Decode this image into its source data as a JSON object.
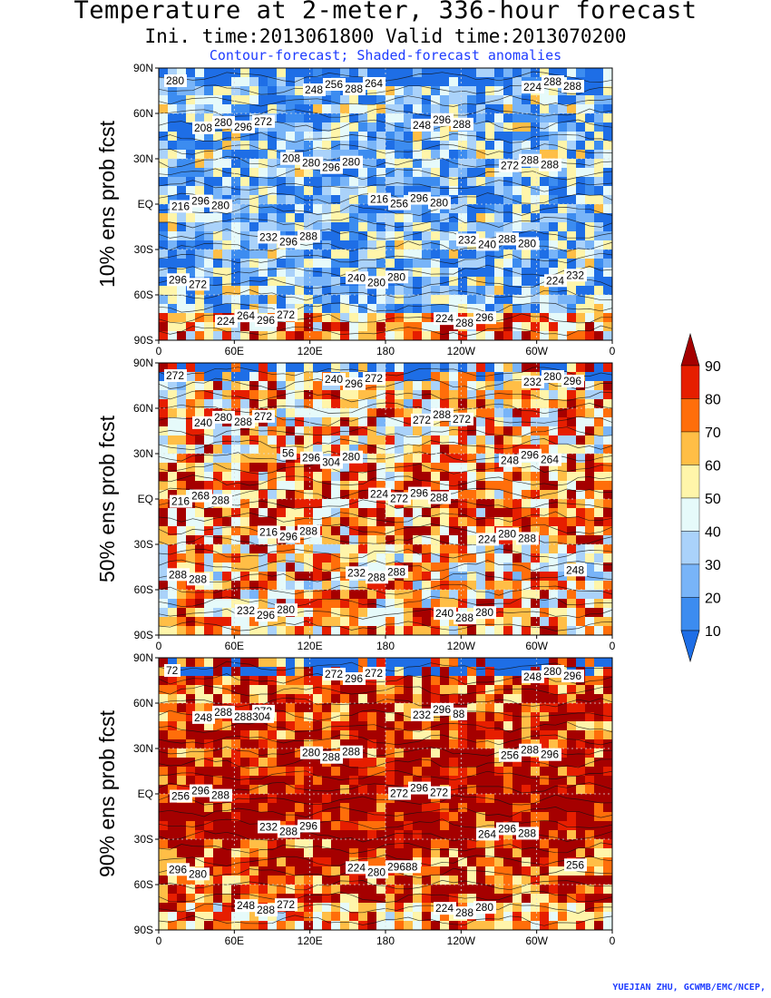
{
  "title": "Temperature at 2-meter, 336-hour forecast",
  "subtitle": "Ini. time:2013061800    Valid time:2013070200",
  "note": "Contour-forecast; Shaded-forecast anomalies",
  "credit": "YUEJIAN ZHU, GCWMB/EMC/NCEP,",
  "chart_data": [
    {
      "type": "heatmap",
      "panel_label": "10% ens prob fcst",
      "x_ticks": [
        "0",
        "60E",
        "120E",
        "180",
        "120W",
        "60W",
        "0"
      ],
      "y_ticks": [
        "90N",
        "60N",
        "30N",
        "EQ",
        "30S",
        "60S",
        "90S"
      ],
      "warm_fraction": 0.28,
      "contour_labels": [
        "280",
        "272",
        "280",
        "280",
        "280",
        "272",
        "272",
        "264",
        "288",
        "288",
        "280",
        "288",
        "280",
        "296",
        "288",
        "296",
        "296",
        "296",
        "288",
        "296",
        "296",
        "288",
        "296",
        "288",
        "296",
        "296",
        "280",
        "288",
        "288",
        "280",
        "280",
        "256",
        "240",
        "232",
        "264",
        "256",
        "248",
        "272",
        "216",
        "232",
        "240",
        "224",
        "224",
        "208",
        "208",
        "216",
        "232",
        "224",
        "224",
        "248"
      ]
    },
    {
      "type": "heatmap",
      "panel_label": "50% ens prob fcst",
      "x_ticks": [
        "0",
        "60E",
        "120E",
        "180",
        "120W",
        "60W",
        "0"
      ],
      "y_ticks": [
        "90N",
        "60N",
        "30N",
        "EQ",
        "30S",
        "60S",
        "90S"
      ],
      "warm_fraction": 0.62,
      "contour_labels": [
        "272",
        "272",
        "280",
        "288",
        "288",
        "288",
        "280",
        "272",
        "272",
        "264",
        "288",
        "288",
        "288",
        "280",
        "296",
        "288",
        "304",
        "296",
        "280",
        "288",
        "296",
        "296",
        "288",
        "296",
        "268",
        "296",
        "288",
        "288",
        "280",
        "280",
        "296",
        "272",
        "224",
        "248",
        "232",
        "240",
        "272",
        "248",
        "216",
        "216",
        "232",
        "240",
        "232",
        "240",
        "56",
        "224"
      ]
    },
    {
      "type": "heatmap",
      "panel_label": "90% ens prob fcst",
      "x_ticks": [
        "0",
        "60E",
        "120E",
        "180",
        "120W",
        "60W",
        "0"
      ],
      "y_ticks": [
        "90N",
        "60N",
        "30N",
        "EQ",
        "30S",
        "60S",
        "90S"
      ],
      "warm_fraction": 0.86,
      "contour_labels": [
        "72",
        "272",
        "288",
        "272",
        "288",
        "280",
        "272",
        "272",
        "88",
        "296",
        "288",
        "296",
        "29688",
        "280",
        "296",
        "288304",
        "288",
        "296",
        "296",
        "296",
        "288",
        "296",
        "296",
        "288",
        "296",
        "288",
        "280",
        "288",
        "280",
        "288",
        "280",
        "272",
        "264",
        "256",
        "248",
        "272",
        "232",
        "256",
        "256",
        "232",
        "224",
        "224",
        "248",
        "248"
      ]
    }
  ],
  "colorbar": {
    "ticks": [
      "10",
      "20",
      "30",
      "40",
      "50",
      "60",
      "70",
      "80",
      "90"
    ],
    "colors": [
      "#1e6ee6",
      "#3c8cf0",
      "#78b4f8",
      "#aad2fa",
      "#e6fafa",
      "#fff5aa",
      "#ffbe46",
      "#ff6e0a",
      "#e61e00",
      "#a50000"
    ]
  }
}
